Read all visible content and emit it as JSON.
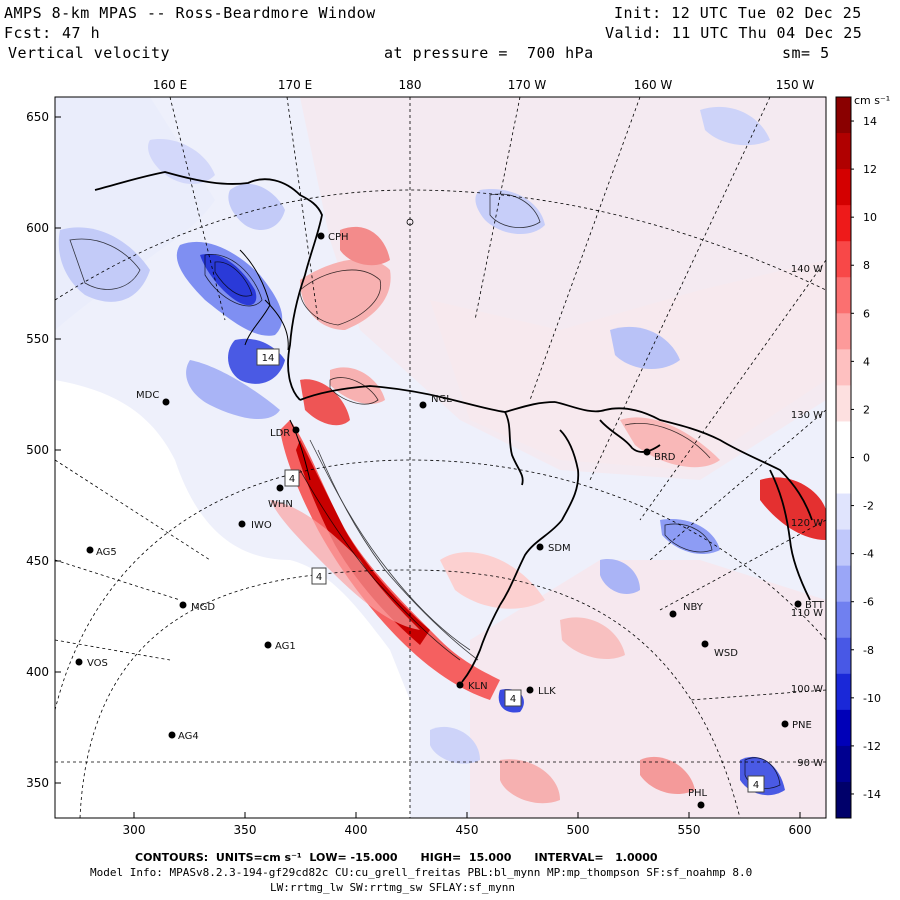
{
  "header": {
    "title": "AMPS 8-km MPAS -- Ross-Beardmore Window",
    "fcst_label": "Fcst:",
    "fcst_value": "47 h",
    "field": "Vertical velocity",
    "init": "Init: 12 UTC Tue 02 Dec 25",
    "valid": "Valid: 11 UTC Thu 04 Dec 25",
    "pressure": "at pressure =  700 hPa",
    "smooth": "sm= 5"
  },
  "map": {
    "top_lon_labels": [
      "160 E",
      "170 E",
      "180",
      "170 W",
      "160 W",
      "150 W"
    ],
    "x_ticks": [
      "300",
      "350",
      "400",
      "450",
      "500",
      "550",
      "600"
    ],
    "y_ticks": [
      "650",
      "600",
      "550",
      "500",
      "450",
      "400",
      "350"
    ],
    "right_lon_labels": [
      "140 W",
      "130 W",
      "120 W",
      "110 W",
      "100 W",
      "90 W"
    ],
    "stations": [
      {
        "name": "CPH",
        "sym": "dot"
      },
      {
        "name": "NGL",
        "sym": "dot"
      },
      {
        "name": "MDC",
        "sym": "dot"
      },
      {
        "name": "BRD",
        "sym": "dot"
      },
      {
        "name": "LDR",
        "sym": "dot"
      },
      {
        "name": "WHN",
        "sym": "dot"
      },
      {
        "name": "IWO",
        "sym": "dot"
      },
      {
        "name": "SDM",
        "sym": "dot"
      },
      {
        "name": "AG5",
        "sym": "dot"
      },
      {
        "name": "MGD",
        "sym": "dot"
      },
      {
        "name": "NBY",
        "sym": "dot"
      },
      {
        "name": "AG1",
        "sym": "dot"
      },
      {
        "name": "WSD",
        "sym": "dot"
      },
      {
        "name": "VOS",
        "sym": "dot"
      },
      {
        "name": "KLN",
        "sym": "dot"
      },
      {
        "name": "LLK",
        "sym": "dot"
      },
      {
        "name": "PNE",
        "sym": "dot"
      },
      {
        "name": "AG4",
        "sym": "dot"
      },
      {
        "name": "PHL",
        "sym": "dot"
      },
      {
        "name": "BTT",
        "sym": "dot"
      }
    ],
    "extrema_labels": [
      "14",
      "4",
      "4",
      "4",
      "4"
    ]
  },
  "colorbar": {
    "units": "cm s⁻¹",
    "labels": [
      "14",
      "12",
      "10",
      "8",
      "6",
      "4",
      "2",
      "0",
      "-2",
      "-4",
      "-6",
      "-8",
      "-10",
      "-12",
      "-14"
    ],
    "colors": [
      "#8a0000",
      "#b00000",
      "#d40000",
      "#ee1a1a",
      "#f84848",
      "#fb7070",
      "#fd9a9a",
      "#fec0c0",
      "#fde0e0",
      "#ffffff",
      "#ffffff",
      "#e0e4fd",
      "#c0c8fb",
      "#9aa6f7",
      "#7080f0",
      "#4858e6",
      "#1a28d8",
      "#0000b8",
      "#000090",
      "#00006a"
    ]
  },
  "footer": {
    "contours": "CONTOURS:  UNITS=cm s⁻¹  LOW= -15.000      HIGH=  15.000      INTERVAL=   1.0000",
    "model_info": "Model Info: MPASv8.2.3-194-gf29cd82c CU:cu_grell_freitas PBL:bl_mynn MP:mp_thompson SF:sf_noahmp 8.0",
    "physics": "LW:rrtmg_lw SW:rrtmg_sw SFLAY:sf_mynn"
  }
}
